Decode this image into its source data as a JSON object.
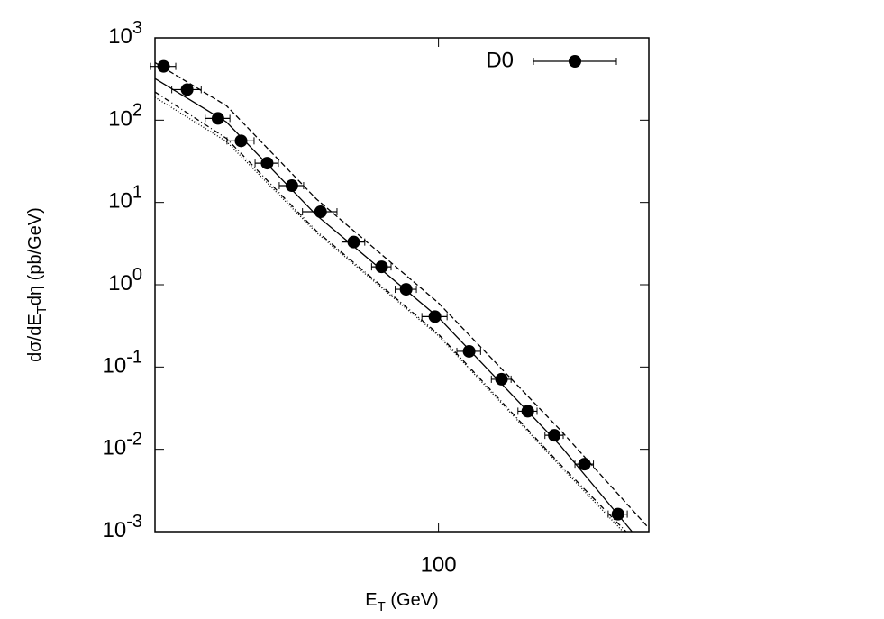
{
  "chart_data": {
    "type": "scatter",
    "log_x": true,
    "log_y": true,
    "xlim": [
      20,
      330
    ],
    "ylim": [
      0.001,
      1000
    ],
    "xticks": [
      100
    ],
    "yticks": [
      {
        "value": 0.001,
        "label": "10",
        "exponent": "-3"
      },
      {
        "value": 0.01,
        "label": "10",
        "exponent": "-2"
      },
      {
        "value": 0.1,
        "label": "10",
        "exponent": "-1"
      },
      {
        "value": 1,
        "label": "10",
        "exponent": "0"
      },
      {
        "value": 10,
        "label": "10",
        "exponent": "1"
      },
      {
        "value": 100,
        "label": "10",
        "exponent": "2"
      },
      {
        "value": 1000,
        "label": "10",
        "exponent": "3"
      }
    ],
    "x_label": [
      "E",
      "T",
      " (GeV)"
    ],
    "y_label": [
      "dσ/dE",
      "T",
      "dη (pb/GeV)"
    ],
    "legend_position": "upper right",
    "series": [
      {
        "name": "D0",
        "color": "#000000",
        "x": [
          21.0,
          24.0,
          28.6,
          32.6,
          37.8,
          43.5,
          51.2,
          61.8,
          72.4,
          83.2,
          98,
          119,
          143,
          166,
          193,
          229,
          277
        ],
        "xerr": [
          1.5,
          2,
          2,
          2.5,
          2.5,
          3,
          5,
          4,
          4,
          5,
          7,
          8,
          8,
          9,
          10,
          12,
          15
        ],
        "values": [
          450,
          235,
          105,
          56,
          30,
          16,
          7.7,
          3.3,
          1.65,
          0.88,
          0.41,
          0.155,
          0.071,
          0.029,
          0.0148,
          0.0066,
          0.00163
        ]
      }
    ],
    "curves": [
      {
        "color": "#000000",
        "dash": "none",
        "x": [
          20,
          30,
          50,
          100,
          200,
          300
        ],
        "values": [
          320,
          95,
          7,
          0.4,
          0.011,
          0.001
        ]
      },
      {
        "color": "#000000",
        "dash": "6 3",
        "x": [
          20,
          30,
          50,
          100,
          200,
          330
        ],
        "values": [
          500,
          150,
          11,
          0.6,
          0.017,
          0.0011
        ]
      },
      {
        "color": "#000000",
        "dash": "6 3 1 3",
        "x": [
          20,
          30,
          50,
          100,
          200,
          290
        ],
        "values": [
          220,
          60,
          4.5,
          0.25,
          0.0065,
          0.001
        ]
      },
      {
        "color": "#000000",
        "dash": "1 2",
        "x": [
          20,
          30,
          50,
          100,
          200,
          285
        ],
        "values": [
          190,
          55,
          4.3,
          0.24,
          0.0062,
          0.001
        ]
      }
    ]
  }
}
